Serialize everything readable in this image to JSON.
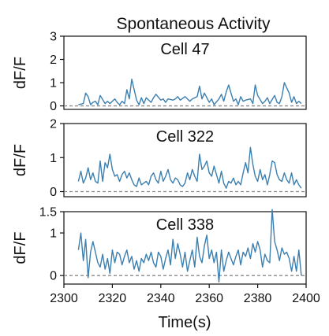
{
  "chart_data": {
    "type": "line",
    "title": "Spontaneous Activity",
    "xlabel": "Time(s)",
    "xlim": [
      2300,
      2400
    ],
    "xticks": [
      2300,
      2320,
      2340,
      2360,
      2380,
      2400
    ],
    "line_color": "#3b7fb0",
    "baseline_color": "#8a8a8a",
    "panels": [
      {
        "title": "Cell 47",
        "ylabel": "dF/F",
        "ylim": [
          -0.15,
          3
        ],
        "yticks": [
          0,
          1,
          2,
          3
        ],
        "baseline": 0,
        "x": [
          2306,
          2308,
          2309,
          2310,
          2311,
          2312,
          2313,
          2314,
          2315,
          2317,
          2318,
          2319,
          2321,
          2322,
          2323,
          2324,
          2325,
          2326,
          2327,
          2328,
          2330,
          2331,
          2332,
          2333,
          2334,
          2336,
          2337,
          2338,
          2340,
          2341,
          2342,
          2343,
          2345,
          2346,
          2347,
          2348,
          2350,
          2351,
          2352,
          2353,
          2355,
          2356,
          2357,
          2358,
          2360,
          2361,
          2362,
          2364,
          2365,
          2366,
          2367,
          2368,
          2370,
          2371,
          2372,
          2373,
          2374,
          2375,
          2377,
          2378,
          2379,
          2380,
          2382,
          2383,
          2384,
          2385,
          2387,
          2388,
          2389,
          2390,
          2391,
          2393,
          2394,
          2395,
          2396,
          2397,
          2398
        ],
        "y": [
          0.05,
          0.1,
          0.55,
          0.4,
          0.05,
          0.15,
          0.2,
          0.05,
          0.45,
          0.1,
          0.2,
          0.1,
          0.3,
          0.15,
          0.05,
          0.2,
          0.1,
          0.7,
          0.3,
          1.15,
          0.25,
          0.05,
          0.35,
          0.1,
          0.35,
          0.15,
          0.35,
          0.5,
          0.25,
          0.3,
          0.15,
          0.3,
          0.25,
          0.3,
          0.4,
          0.25,
          0.4,
          0.3,
          0.2,
          0.3,
          0.4,
          0.85,
          0.3,
          0.55,
          0.15,
          0.3,
          0.05,
          0.3,
          0.5,
          0.2,
          0.6,
          0.9,
          0.2,
          0.3,
          0.05,
          0.4,
          0.2,
          0.25,
          0.3,
          0.1,
          0.9,
          0.45,
          0.1,
          0.2,
          0.35,
          0.1,
          0.45,
          0.15,
          0.1,
          0.4,
          1.0,
          0.55,
          0.15,
          0.4,
          0.1,
          0.2,
          0.1
        ]
      },
      {
        "title": "Cell 322",
        "ylabel": "dF/F",
        "ylim": [
          -0.15,
          2
        ],
        "yticks": [
          0,
          1,
          2
        ],
        "baseline": 0,
        "x": [
          2306,
          2307,
          2308,
          2309,
          2310,
          2311,
          2312,
          2313,
          2314,
          2315,
          2316,
          2317,
          2318,
          2319,
          2320,
          2321,
          2322,
          2323,
          2324,
          2325,
          2326,
          2327,
          2328,
          2329,
          2330,
          2331,
          2332,
          2333,
          2334,
          2335,
          2336,
          2337,
          2338,
          2339,
          2340,
          2341,
          2342,
          2343,
          2344,
          2345,
          2346,
          2347,
          2348,
          2349,
          2350,
          2351,
          2352,
          2353,
          2354,
          2355,
          2356,
          2357,
          2358,
          2359,
          2360,
          2361,
          2362,
          2363,
          2364,
          2365,
          2366,
          2367,
          2368,
          2369,
          2370,
          2371,
          2372,
          2373,
          2374,
          2375,
          2376,
          2377,
          2378,
          2379,
          2380,
          2381,
          2382,
          2383,
          2384,
          2385,
          2386,
          2387,
          2388,
          2389,
          2390,
          2391,
          2392,
          2393,
          2394,
          2395,
          2396,
          2397,
          2398
        ],
        "y": [
          0.3,
          0.6,
          0.25,
          0.4,
          0.7,
          0.35,
          0.55,
          0.3,
          0.25,
          0.9,
          0.3,
          0.85,
          0.7,
          1.1,
          0.65,
          0.45,
          0.5,
          0.3,
          0.5,
          0.6,
          0.4,
          0.55,
          0.35,
          0.2,
          0.15,
          0.4,
          0.2,
          0.25,
          0.3,
          0.2,
          0.45,
          0.55,
          0.35,
          0.25,
          0.6,
          0.3,
          0.45,
          0.65,
          0.35,
          0.25,
          0.4,
          0.35,
          0.2,
          0.15,
          0.25,
          0.55,
          0.35,
          0.65,
          0.45,
          0.3,
          1.1,
          0.65,
          0.75,
          0.9,
          0.55,
          0.45,
          0.75,
          0.5,
          0.25,
          0.6,
          0.25,
          0.1,
          0.3,
          0.25,
          0.4,
          0.2,
          0.3,
          0.2,
          0.55,
          0.85,
          0.55,
          1.3,
          0.8,
          0.45,
          0.3,
          0.65,
          0.35,
          0.5,
          0.2,
          0.5,
          0.9,
          0.85,
          0.5,
          0.35,
          0.3,
          0.55,
          0.35,
          0.25,
          0.55,
          0.2,
          0.35,
          0.2,
          0.1
        ]
      },
      {
        "title": "Cell 338",
        "ylabel": "dF/F",
        "ylim": [
          -0.2,
          1.5
        ],
        "yticks": [
          0,
          1,
          1.5
        ],
        "baseline": 0,
        "x": [
          2306,
          2307,
          2308,
          2309,
          2310,
          2311,
          2312,
          2313,
          2314,
          2315,
          2316,
          2317,
          2318,
          2319,
          2320,
          2321,
          2322,
          2323,
          2324,
          2325,
          2326,
          2327,
          2328,
          2329,
          2330,
          2331,
          2332,
          2333,
          2334,
          2335,
          2336,
          2337,
          2338,
          2339,
          2340,
          2341,
          2342,
          2343,
          2344,
          2345,
          2346,
          2347,
          2348,
          2349,
          2350,
          2351,
          2352,
          2353,
          2354,
          2355,
          2356,
          2357,
          2358,
          2359,
          2360,
          2361,
          2362,
          2363,
          2364,
          2365,
          2366,
          2367,
          2368,
          2369,
          2370,
          2371,
          2372,
          2373,
          2374,
          2375,
          2376,
          2377,
          2378,
          2379,
          2380,
          2381,
          2382,
          2383,
          2384,
          2385,
          2386,
          2387,
          2388,
          2389,
          2390,
          2391,
          2392,
          2393,
          2394,
          2395,
          2396,
          2397,
          2398
        ],
        "y": [
          0.6,
          1.0,
          0.35,
          0.85,
          -0.05,
          0.55,
          0.8,
          0.55,
          0.3,
          0.2,
          0.5,
          0.15,
          0.4,
          0.05,
          0.6,
          0.3,
          0.55,
          0.5,
          0.25,
          0.45,
          0.6,
          0.3,
          0.45,
          0.15,
          0.35,
          0.1,
          0.4,
          0.3,
          0.5,
          0.35,
          0.55,
          0.3,
          0.2,
          0.55,
          0.45,
          0.15,
          0.4,
          0.6,
          0.25,
          0.85,
          0.4,
          0.75,
          0.5,
          0.2,
          0.55,
          0.1,
          0.35,
          0.6,
          0.2,
          0.9,
          0.45,
          0.3,
          0.7,
          0.95,
          0.4,
          0.6,
          0.3,
          0.55,
          -0.15,
          0.6,
          0.1,
          0.35,
          0.55,
          0.4,
          0.25,
          0.45,
          0.6,
          0.25,
          0.55,
          0.45,
          0.65,
          0.4,
          0.75,
          0.55,
          0.8,
          0.6,
          0.2,
          0.5,
          0.35,
          0.3,
          1.55,
          0.8,
          0.6,
          0.35,
          0.65,
          0.5,
          0.55,
          0.4,
          0.1,
          0.45,
          0.1,
          0.6,
          0.0
        ]
      }
    ]
  }
}
